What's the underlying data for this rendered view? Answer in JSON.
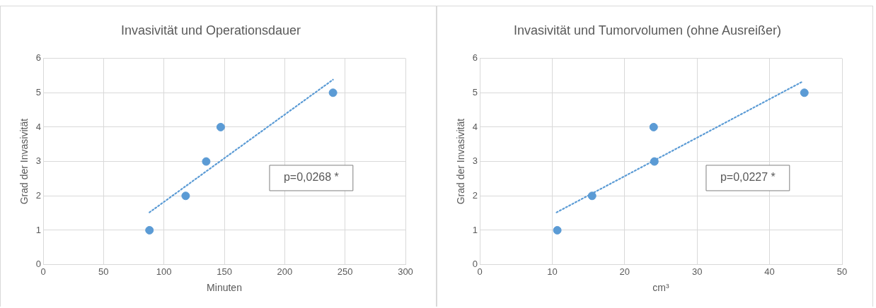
{
  "chart_data": [
    {
      "type": "scatter",
      "title": "Invasivität und Operationsdauer",
      "xlabel": "Minuten",
      "ylabel": "Grad der Invasivität",
      "annotations": [
        "p=0,0268 *"
      ],
      "xlim": [
        0,
        300
      ],
      "xticks": [
        0,
        50,
        100,
        150,
        200,
        250,
        300
      ],
      "ylim": [
        0,
        6
      ],
      "yticks": [
        0,
        1,
        2,
        3,
        4,
        5,
        6
      ],
      "grid": true,
      "legend": false,
      "marker": "circle",
      "series": [
        {
          "type": "scatter",
          "color": "#5b9bd5",
          "x": [
            88,
            118,
            135,
            147,
            240
          ],
          "values": [
            1,
            2,
            3,
            4,
            5
          ]
        },
        {
          "type": "line",
          "color": "#5b9bd5",
          "line_style": "dotted",
          "marker": "none",
          "x": [
            88,
            240
          ],
          "values": [
            1.52,
            5.38
          ]
        }
      ]
    },
    {
      "type": "scatter",
      "title": "Invasivität und Tumorvolumen (ohne Ausreißer)",
      "xlabel": "cm³",
      "ylabel": "Grad der Invasivität",
      "annotations": [
        "p=0,0227 *"
      ],
      "xlim": [
        0,
        50
      ],
      "xticks": [
        0,
        10,
        20,
        30,
        40,
        50
      ],
      "ylim": [
        0,
        6
      ],
      "yticks": [
        0,
        1,
        2,
        3,
        4,
        5,
        6
      ],
      "grid": true,
      "legend": false,
      "marker": "circle",
      "series": [
        {
          "type": "scatter",
          "color": "#5b9bd5",
          "x": [
            10.7,
            15.5,
            24.0,
            24.1,
            44.8
          ],
          "values": [
            1,
            2,
            4,
            3,
            5
          ]
        },
        {
          "type": "line",
          "color": "#5b9bd5",
          "line_style": "dotted",
          "marker": "none",
          "x": [
            10.6,
            44.6
          ],
          "values": [
            1.52,
            5.33
          ]
        }
      ]
    }
  ]
}
